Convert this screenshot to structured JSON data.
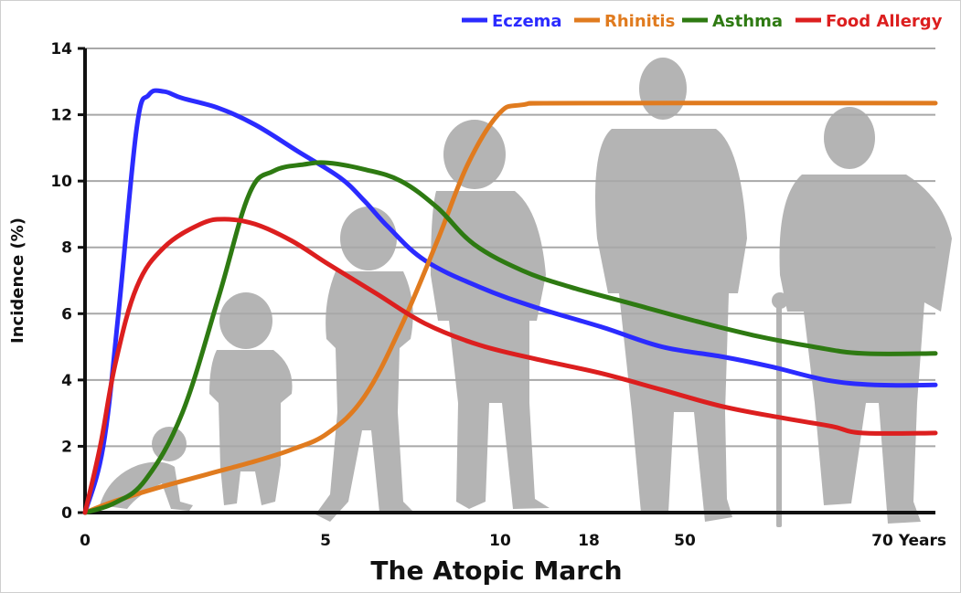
{
  "chart_data": {
    "type": "line",
    "title": "The Atopic March",
    "ylabel": "Incidence (%)",
    "xlabel": "",
    "ylim": [
      0,
      14
    ],
    "yticks": [
      0,
      2,
      4,
      6,
      8,
      10,
      12,
      14
    ],
    "x_ticks": [
      "0",
      "5",
      "10",
      "18",
      "50",
      "70 Years"
    ],
    "grid": "horizontal",
    "legend_position": "top-right",
    "series": [
      {
        "name": "Eczema",
        "color": "#2b2bff",
        "points": [
          [
            0,
            0
          ],
          [
            0.3,
            2
          ],
          [
            0.55,
            6
          ],
          [
            0.85,
            11.6
          ],
          [
            1.05,
            12.6
          ],
          [
            1.3,
            12.7
          ],
          [
            1.6,
            12.5
          ],
          [
            2.2,
            12.2
          ],
          [
            2.8,
            11.7
          ],
          [
            3.5,
            10.9
          ],
          [
            4.2,
            10.1
          ],
          [
            4.6,
            9.4
          ],
          [
            5.0,
            8.6
          ],
          [
            5.6,
            7.6
          ],
          [
            6.5,
            6.8
          ],
          [
            7.4,
            6.2
          ],
          [
            8.5,
            5.6
          ],
          [
            9.5,
            5.0
          ],
          [
            10.5,
            4.7
          ],
          [
            11.3,
            4.4
          ],
          [
            12.2,
            4.0
          ],
          [
            13,
            3.85
          ],
          [
            14,
            3.85
          ]
        ]
      },
      {
        "name": "Rhinitis",
        "color": "#e07b1f",
        "points": [
          [
            0,
            0
          ],
          [
            0.5,
            0.35
          ],
          [
            1.2,
            0.75
          ],
          [
            2.0,
            1.15
          ],
          [
            2.8,
            1.55
          ],
          [
            3.4,
            1.9
          ],
          [
            4.0,
            2.4
          ],
          [
            4.6,
            3.5
          ],
          [
            5.2,
            5.6
          ],
          [
            5.8,
            8.2
          ],
          [
            6.3,
            10.5
          ],
          [
            6.8,
            12.0
          ],
          [
            7.2,
            12.3
          ],
          [
            8.2,
            12.35
          ],
          [
            14,
            12.35
          ]
        ]
      },
      {
        "name": "Asthma",
        "color": "#2e7a12",
        "points": [
          [
            0,
            0
          ],
          [
            0.5,
            0.3
          ],
          [
            1.0,
            1.0
          ],
          [
            1.6,
            3.0
          ],
          [
            2.2,
            6.5
          ],
          [
            2.7,
            9.6
          ],
          [
            3.1,
            10.3
          ],
          [
            3.6,
            10.5
          ],
          [
            4.0,
            10.55
          ],
          [
            4.6,
            10.35
          ],
          [
            5.2,
            10.0
          ],
          [
            5.8,
            9.2
          ],
          [
            6.4,
            8.1
          ],
          [
            7.2,
            7.3
          ],
          [
            8.0,
            6.8
          ],
          [
            9.0,
            6.3
          ],
          [
            10.0,
            5.8
          ],
          [
            11.0,
            5.35
          ],
          [
            12.0,
            5.0
          ],
          [
            12.8,
            4.8
          ],
          [
            14,
            4.8
          ]
        ]
      },
      {
        "name": "Food Allergy",
        "color": "#dc1f1f",
        "points": [
          [
            0,
            0
          ],
          [
            0.25,
            2.0
          ],
          [
            0.5,
            4.5
          ],
          [
            0.85,
            6.8
          ],
          [
            1.3,
            8.0
          ],
          [
            1.9,
            8.7
          ],
          [
            2.3,
            8.85
          ],
          [
            2.8,
            8.7
          ],
          [
            3.4,
            8.2
          ],
          [
            4.0,
            7.5
          ],
          [
            4.8,
            6.6
          ],
          [
            5.6,
            5.7
          ],
          [
            6.5,
            5.05
          ],
          [
            7.5,
            4.6
          ],
          [
            8.5,
            4.2
          ],
          [
            9.5,
            3.7
          ],
          [
            10.5,
            3.2
          ],
          [
            11.5,
            2.85
          ],
          [
            12.3,
            2.6
          ],
          [
            12.8,
            2.4
          ],
          [
            14,
            2.4
          ]
        ]
      }
    ]
  }
}
